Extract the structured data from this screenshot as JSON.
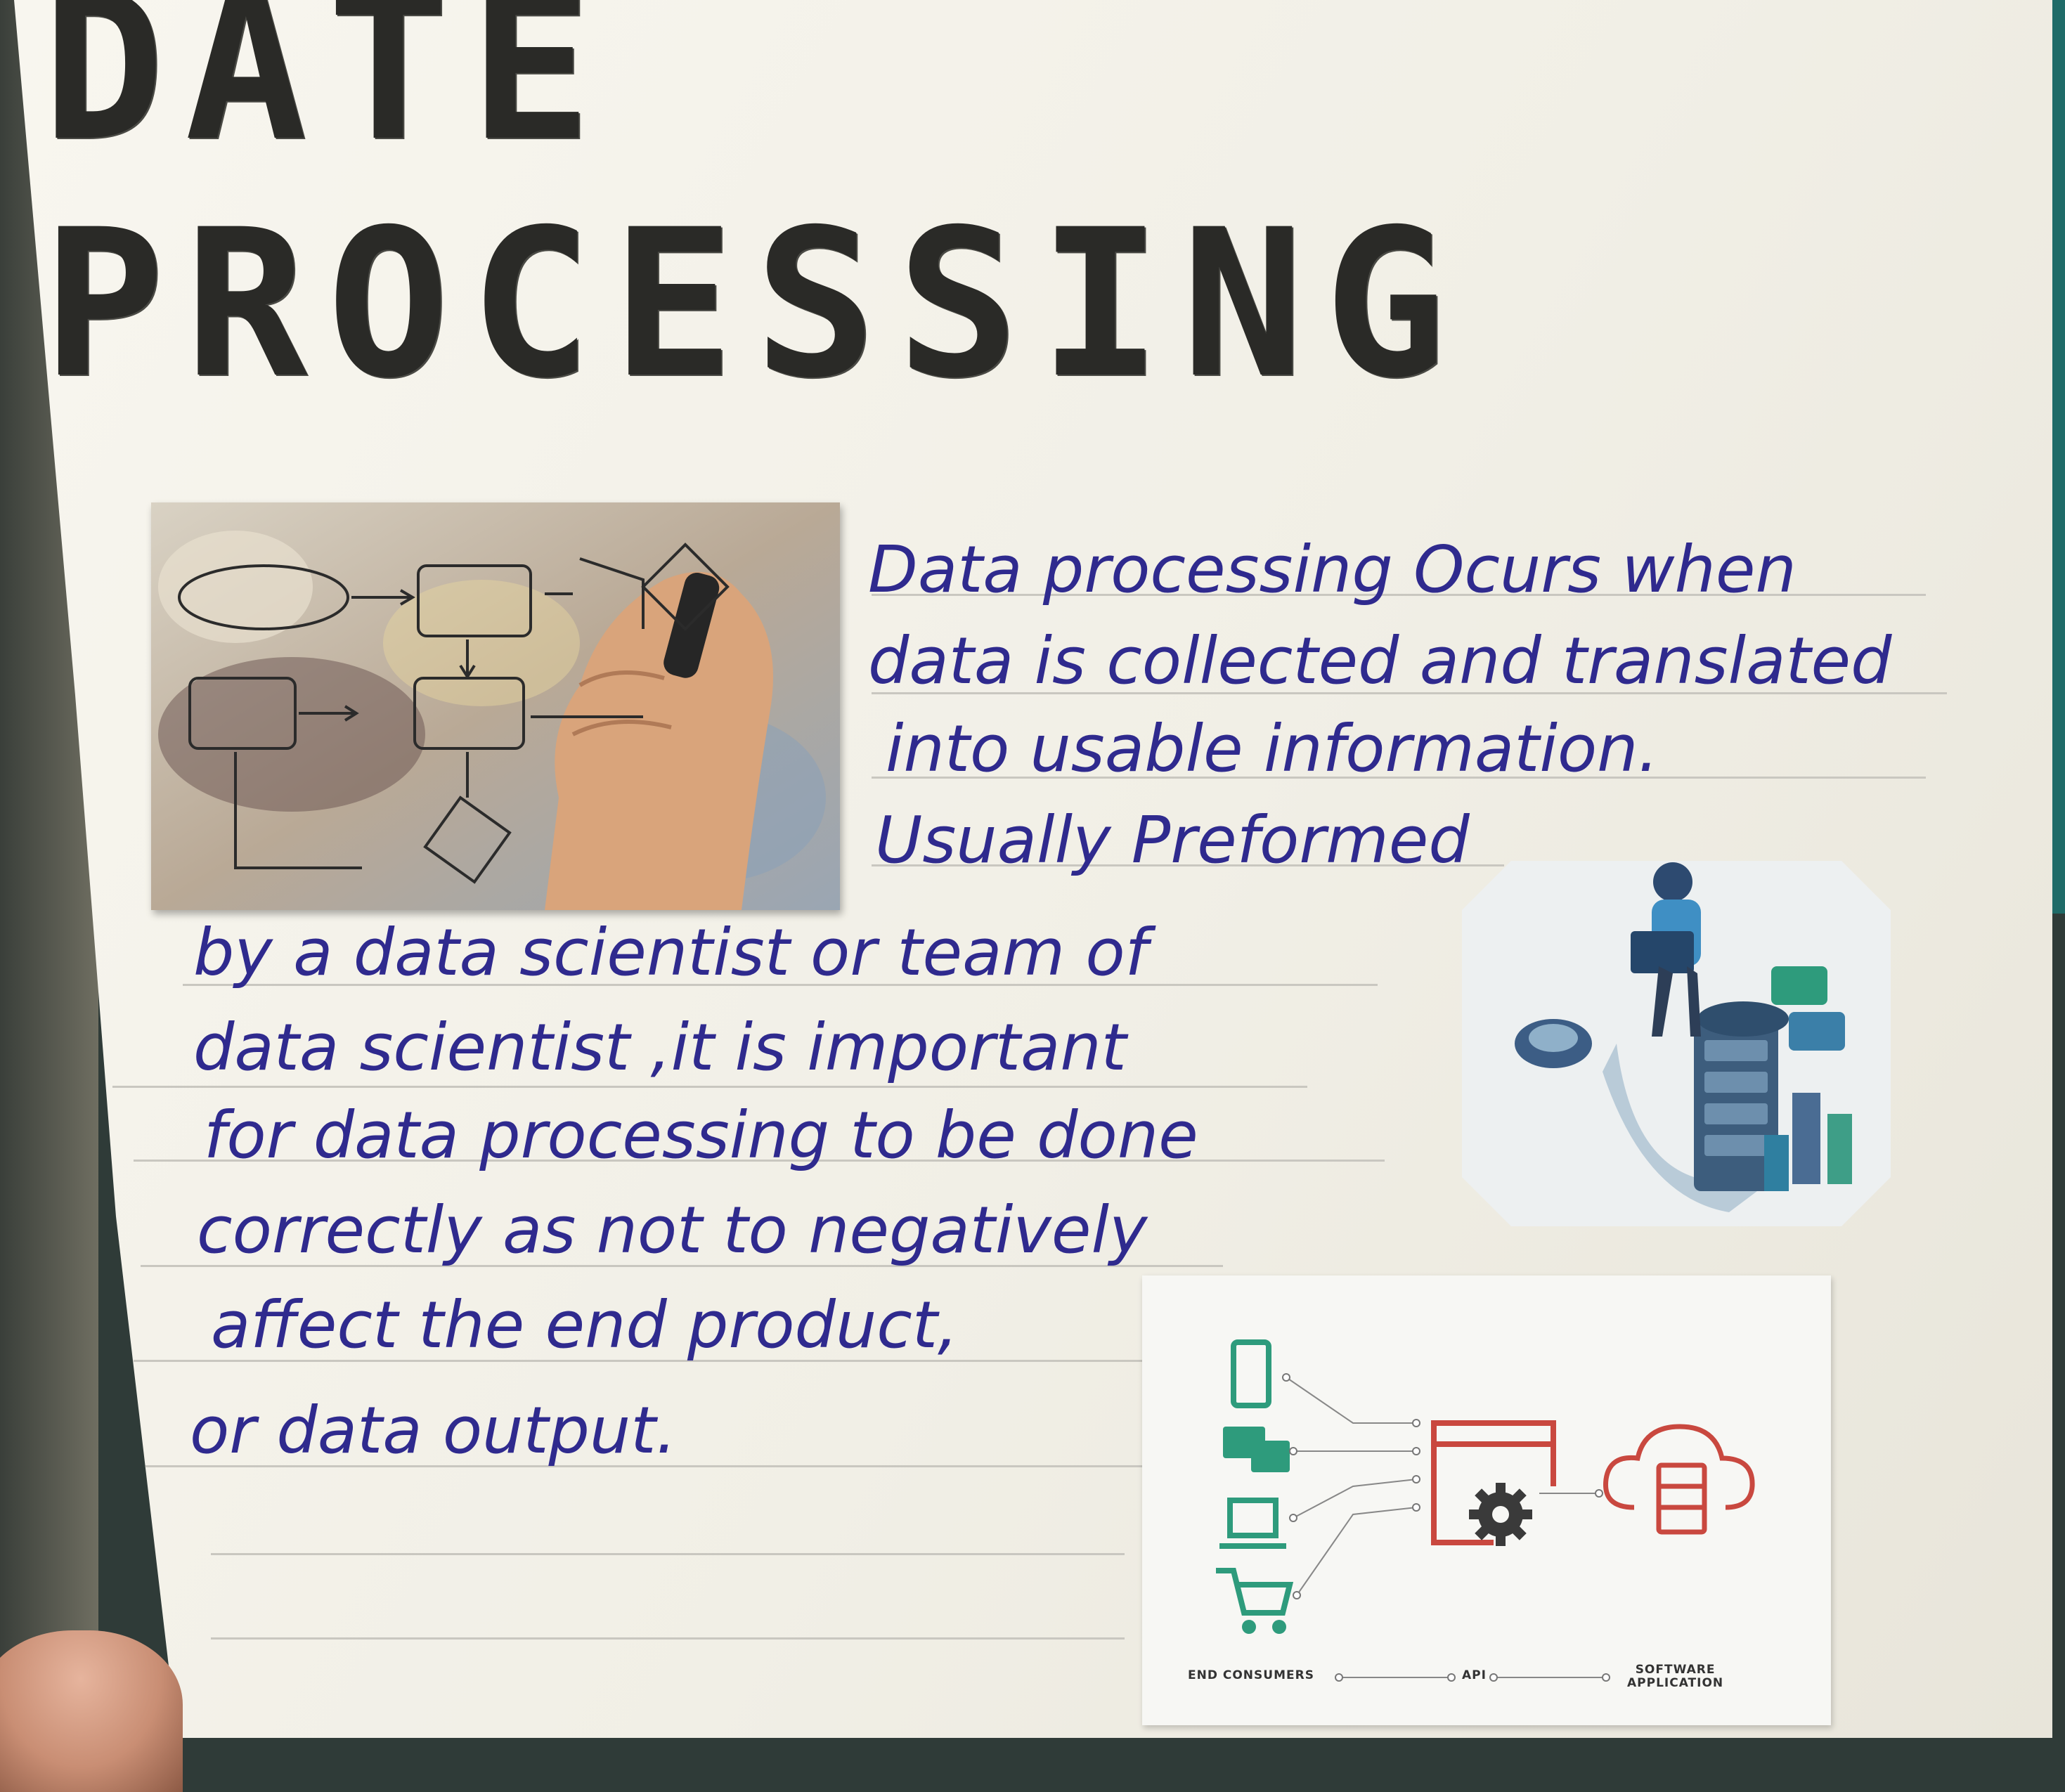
{
  "poster": {
    "title": "DATE PROCESSING",
    "paragraph_lines": [
      "Data processing Ocurs when",
      "data is collected and translated",
      "into usable information.",
      "Usually Preformed",
      "by a data scientist or team of",
      "data scientist ,it is important",
      "for data processing to be done",
      "correctly as not to negatively",
      "affect the end product,",
      "or data output."
    ]
  },
  "api_diagram": {
    "labels": {
      "consumers": "END CONSUMERS",
      "api": "API",
      "software_line1": "SOFTWARE",
      "software_line2": "APPLICATION"
    }
  },
  "colors": {
    "ink_blue": "#2f2a8e",
    "marker_black": "#2a2a27",
    "teal_icon": "#2e9b7c",
    "red_icon": "#c9483f"
  }
}
